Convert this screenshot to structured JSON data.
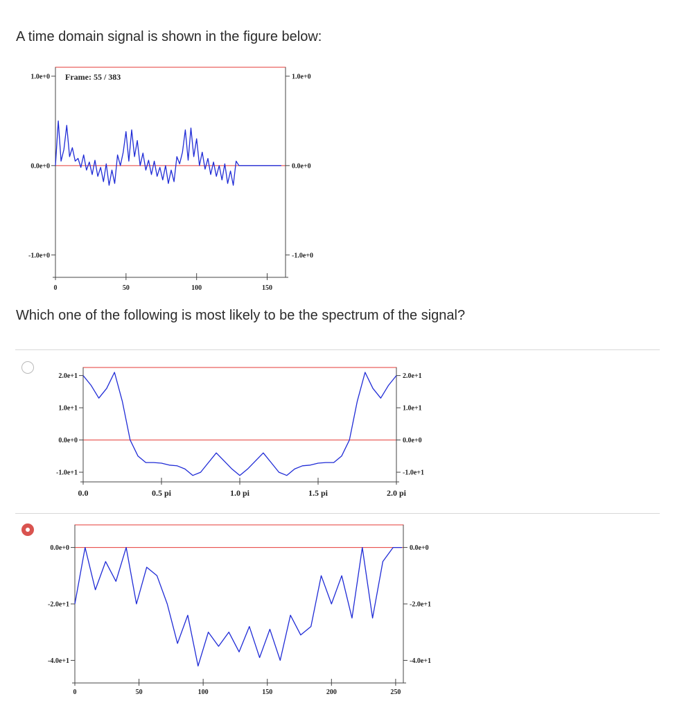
{
  "question": {
    "prompt": "A time domain signal is shown in the figure below:",
    "followup": "Which one of the following is most likely to be the spectrum of the signal?"
  },
  "figure_time": {
    "frame_label": "Frame: 55 / 383",
    "y_ticks_left": [
      "1.0e+0",
      "0.0e+0",
      "-1.0e+0"
    ],
    "y_ticks_right": [
      "1.0e+0",
      "0.0e+0",
      "-1.0e+0"
    ],
    "x_ticks": [
      "0",
      "50",
      "100",
      "150"
    ]
  },
  "option_a": {
    "selected": false,
    "y_ticks_left": [
      "2.0e+1",
      "1.0e+1",
      "0.0e+0",
      "-1.0e+1"
    ],
    "y_ticks_right": [
      "2.0e+1",
      "1.0e+1",
      "0.0e+0",
      "-1.0e+1"
    ],
    "x_ticks": [
      "0.0",
      "0.5 pi",
      "1.0 pi",
      "1.5 pi",
      "2.0 pi"
    ]
  },
  "option_b": {
    "selected": true,
    "y_ticks_left": [
      "0.0e+0",
      "-2.0e+1",
      "-4.0e+1"
    ],
    "y_ticks_right": [
      "0.0e+0",
      "-2.0e+1",
      "-4.0e+1"
    ],
    "x_ticks": [
      "0",
      "50",
      "100",
      "150",
      "200",
      "250"
    ]
  },
  "colors": {
    "axis": "#e53935",
    "signal": "#1f2bd6",
    "radio_selected": "#d9534f"
  },
  "chart_data": [
    {
      "type": "line",
      "x": [
        0,
        2,
        4,
        6,
        8,
        10,
        12,
        14,
        16,
        18,
        20,
        22,
        24,
        26,
        28,
        30,
        32,
        34,
        36,
        38,
        40,
        42,
        44,
        46,
        48,
        50,
        52,
        54,
        56,
        58,
        60,
        62,
        64,
        66,
        68,
        70,
        72,
        74,
        76,
        78,
        80,
        82,
        84,
        86,
        88,
        90,
        92,
        94,
        96,
        98,
        100,
        102,
        104,
        106,
        108,
        110,
        112,
        114,
        116,
        118,
        120,
        122,
        124,
        126,
        128,
        130,
        132,
        134,
        136,
        138,
        140,
        142,
        144,
        146,
        148,
        150,
        152,
        154,
        156,
        158,
        160
      ],
      "series": [
        {
          "values": [
            0.0,
            0.5,
            0.05,
            0.18,
            0.45,
            0.1,
            0.2,
            0.05,
            0.08,
            -0.02,
            0.12,
            -0.05,
            0.04,
            -0.1,
            0.06,
            -0.12,
            -0.02,
            -0.18,
            0.02,
            -0.22,
            -0.05,
            -0.2,
            0.12,
            0.0,
            0.15,
            0.38,
            0.05,
            0.4,
            0.1,
            0.28,
            0.0,
            0.14,
            -0.05,
            0.06,
            -0.1,
            0.05,
            -0.12,
            -0.02,
            -0.16,
            0.0,
            -0.2,
            -0.05,
            -0.18,
            0.1,
            0.02,
            0.15,
            0.4,
            0.06,
            0.42,
            0.1,
            0.3,
            0.0,
            0.15,
            -0.04,
            0.08,
            -0.1,
            0.04,
            -0.12,
            0.0,
            -0.16,
            0.02,
            -0.2,
            -0.06,
            -0.22,
            0.05,
            0.0,
            0.0,
            0.0,
            0.0,
            0.0,
            0.0,
            0.0,
            0.0,
            0.0,
            0.0,
            0.0,
            0.0,
            0.0,
            0.0,
            0.0,
            0.0
          ]
        }
      ],
      "ylim": [
        -1.25,
        1.1
      ],
      "xlim": [
        0,
        163
      ]
    },
    {
      "type": "line",
      "x": [
        0.0,
        0.05,
        0.1,
        0.15,
        0.2,
        0.25,
        0.3,
        0.35,
        0.4,
        0.45,
        0.5,
        0.55,
        0.6,
        0.65,
        0.7,
        0.75,
        0.8,
        0.85,
        0.9,
        0.95,
        1.0,
        1.05,
        1.1,
        1.15,
        1.2,
        1.25,
        1.3,
        1.35,
        1.4,
        1.45,
        1.5,
        1.55,
        1.6,
        1.65,
        1.7,
        1.75,
        1.8,
        1.85,
        1.9,
        1.95,
        2.0
      ],
      "series": [
        {
          "values": [
            20,
            17,
            13,
            16,
            21,
            12,
            0,
            -5,
            -7,
            -7,
            -7.2,
            -7.8,
            -8,
            -9,
            -11,
            -10,
            -7,
            -4,
            -6.5,
            -9,
            -11,
            -9,
            -6.5,
            -4,
            -7,
            -10,
            -11,
            -9,
            -8,
            -7.8,
            -7.2,
            -7,
            -7,
            -5,
            0,
            12,
            21,
            16,
            13,
            17,
            20
          ]
        }
      ],
      "ylim": [
        -13,
        22.5
      ],
      "xlim": [
        0,
        2.0
      ]
    },
    {
      "type": "line",
      "x": [
        0,
        8,
        16,
        24,
        32,
        40,
        48,
        56,
        64,
        72,
        80,
        88,
        96,
        104,
        112,
        120,
        128,
        136,
        144,
        152,
        160,
        168,
        176,
        184,
        192,
        200,
        208,
        216,
        224,
        232,
        240,
        248,
        255
      ],
      "series": [
        {
          "values": [
            -20,
            0,
            -15,
            -5,
            -12,
            0,
            -20,
            -7,
            -10,
            -20,
            -34,
            -24,
            -42,
            -30,
            -35,
            -30,
            -37,
            -28,
            -39,
            -29,
            -40,
            -24,
            -31,
            -28,
            -10,
            -20,
            -10,
            -25,
            0,
            -25,
            -5,
            0,
            0
          ]
        }
      ],
      "ylim": [
        -48,
        8
      ],
      "xlim": [
        0,
        256
      ]
    }
  ]
}
